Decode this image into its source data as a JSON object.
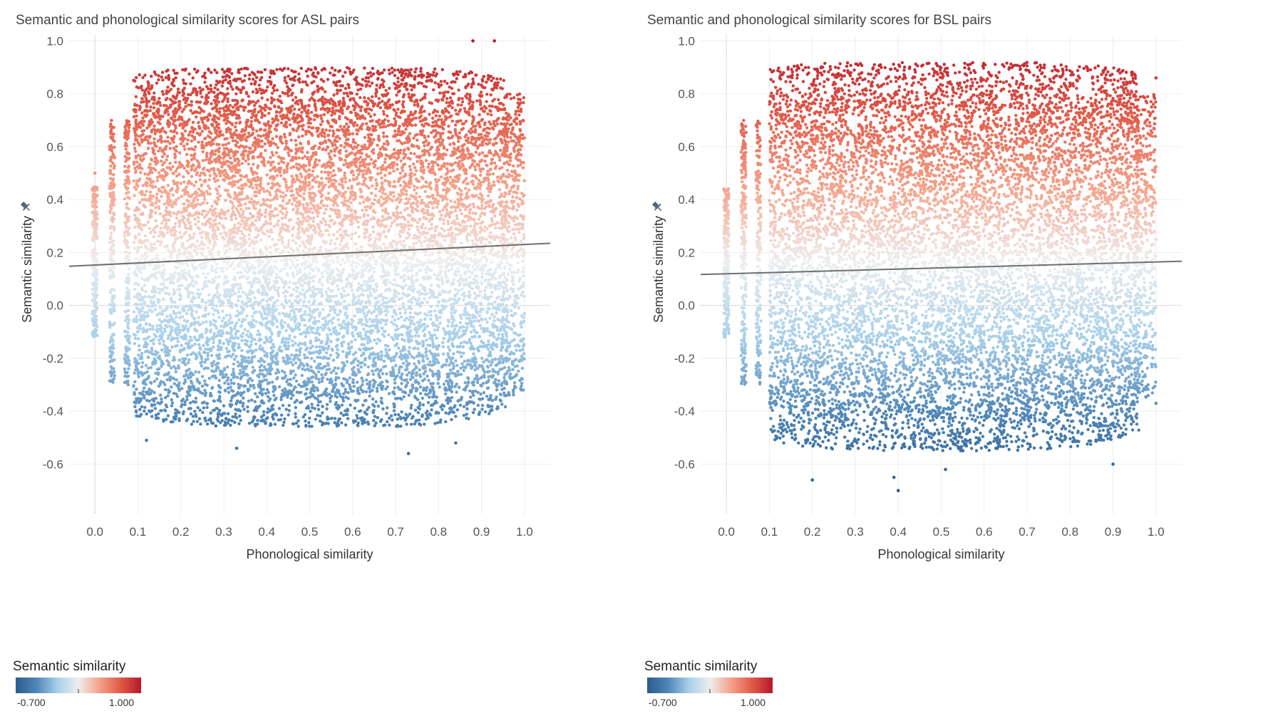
{
  "chart_data": [
    {
      "type": "scatter",
      "title": "Semantic and phonological similarity scores for ASL pairs",
      "xlabel": "Phonological similarity",
      "ylabel": "Semantic similarity",
      "xlim": [
        -0.06,
        1.06
      ],
      "ylim": [
        -0.79,
        1.02
      ],
      "x_ticks": [
        "0.0",
        "0.1",
        "0.2",
        "0.3",
        "0.4",
        "0.5",
        "0.6",
        "0.7",
        "0.8",
        "0.9",
        "1.0"
      ],
      "y_ticks": [
        "1.0",
        "0.8",
        "0.6",
        "0.4",
        "0.2",
        "0.0",
        "-0.2",
        "-0.4",
        "-0.6"
      ],
      "trend_line": {
        "x": [
          -0.06,
          1.06
        ],
        "y": [
          0.148,
          0.235
        ]
      },
      "point_cloud": {
        "description_x": [
          0.0,
          1.0
        ],
        "core_x": [
          0.09,
          0.96
        ],
        "y_top": 0.9,
        "y_bottom": -0.46,
        "outliers": [
          [
            0.88,
            1.0
          ],
          [
            0.93,
            1.0
          ],
          [
            0.12,
            -0.51
          ],
          [
            0.73,
            -0.56
          ],
          [
            0.33,
            -0.54
          ],
          [
            0.84,
            -0.52
          ],
          [
            0.0,
            0.5
          ],
          [
            0.0,
            0.42
          ]
        ]
      },
      "legend": {
        "title": "Semantic similarity",
        "min": "-0.700",
        "max": "1.000",
        "colors": [
          "#2b5c8a",
          "#4f86b8",
          "#a8d0ea",
          "#eeeeee",
          "#f5a28a",
          "#e15a48",
          "#b5182b"
        ]
      }
    },
    {
      "type": "scatter",
      "title": "Semantic and phonological similarity scores for BSL pairs",
      "xlabel": "Phonological similarity",
      "ylabel": "Semantic similarity",
      "xlim": [
        -0.06,
        1.06
      ],
      "ylim": [
        -0.79,
        1.02
      ],
      "x_ticks": [
        "0.0",
        "0.1",
        "0.2",
        "0.3",
        "0.4",
        "0.5",
        "0.6",
        "0.7",
        "0.8",
        "0.9",
        "1.0"
      ],
      "y_ticks": [
        "1.0",
        "0.8",
        "0.6",
        "0.4",
        "0.2",
        "0.0",
        "-0.2",
        "-0.4",
        "-0.6"
      ],
      "trend_line": {
        "x": [
          -0.06,
          1.06
        ],
        "y": [
          0.117,
          0.167
        ]
      },
      "point_cloud": {
        "description_x": [
          0.0,
          1.0
        ],
        "core_x": [
          0.1,
          0.96
        ],
        "y_top": 0.92,
        "y_bottom": -0.55,
        "outliers": [
          [
            0.4,
            -0.7
          ],
          [
            0.39,
            -0.65
          ],
          [
            0.2,
            -0.66
          ],
          [
            0.51,
            -0.62
          ],
          [
            0.9,
            -0.6
          ],
          [
            1.0,
            -0.37
          ],
          [
            0.0,
            0.32
          ],
          [
            1.0,
            0.86
          ]
        ]
      },
      "legend": {
        "title": "Semantic similarity",
        "min": "-0.700",
        "max": "1.000",
        "colors": [
          "#2b5c8a",
          "#4f86b8",
          "#a8d0ea",
          "#eeeeee",
          "#f5a28a",
          "#e15a48",
          "#b5182b"
        ]
      }
    }
  ]
}
